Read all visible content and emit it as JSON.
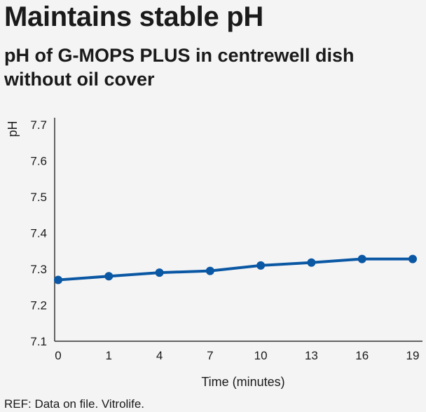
{
  "headline": "Maintains stable pH",
  "subheadline": "pH of G-MOPS PLUS in centrewell dish without oil cover",
  "footnote": "REF: Data on file. Vitrolife.",
  "colors": {
    "series": "#0a57a4",
    "axis": "#333333",
    "background": "#f4f4f4"
  },
  "chart_data": {
    "type": "line",
    "title": "pH of G-MOPS PLUS in centrewell dish without oil cover",
    "xlabel": "Time (minutes)",
    "ylabel": "pH",
    "categories": [
      "0",
      "1",
      "4",
      "7",
      "10",
      "13",
      "16",
      "19"
    ],
    "ylim": [
      7.1,
      7.7
    ],
    "yticks": [
      "7.1",
      "7.2",
      "7.3",
      "7.4",
      "7.5",
      "7.6",
      "7.7"
    ],
    "grid": false,
    "series": [
      {
        "values": [
          7.27,
          7.28,
          7.29,
          7.295,
          7.31,
          7.318,
          7.328,
          7.328
        ]
      }
    ]
  }
}
